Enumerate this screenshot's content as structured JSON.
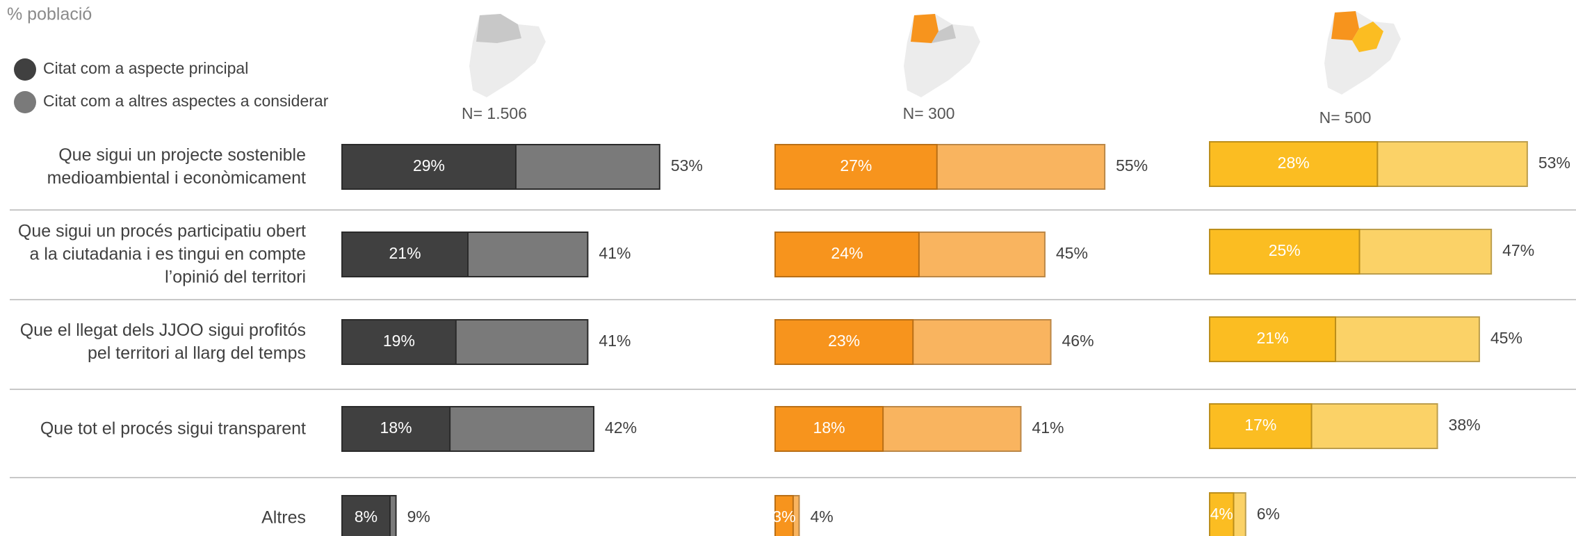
{
  "chart_data": {
    "type": "bar",
    "title": "% població",
    "legend": [
      {
        "name": "Citat com a aspecte principal",
        "color": "#404040"
      },
      {
        "name": "Citat com a altres aspectes a considerar",
        "color": "#7a7a7a"
      }
    ],
    "categories": [
      "Que sigui un projecte sostenible medioambiental i econòmicament",
      "Que sigui un procés participatiu obert a la ciutadania i es tingui en compte l’opinió del territori",
      "Que el llegat dels JJOO sigui profitós pel territori al llarg del temps",
      "Que tot el procés sigui transparent",
      "Altres"
    ],
    "xlim": [
      0,
      70
    ],
    "panels": [
      {
        "subtitle": "N= 1.506",
        "series": [
          {
            "name": "Citat com a aspecte principal",
            "color": "#404040",
            "values": [
              29,
              21,
              19,
              18,
              8
            ],
            "value_labels": [
              "29%",
              "21%",
              "19%",
              "18%",
              "8%"
            ]
          },
          {
            "name": "Citat com a altres aspectes a considerar",
            "color": "#7a7a7a",
            "values": [
              53,
              41,
              41,
              42,
              9
            ],
            "value_labels": [
              "53%",
              "41%",
              "41%",
              "42%",
              "9%"
            ]
          }
        ]
      },
      {
        "subtitle": "N= 300",
        "series": [
          {
            "name": "Citat com a aspecte principal",
            "color": "#f7941d",
            "values": [
              27,
              24,
              23,
              18,
              3
            ],
            "value_labels": [
              "27%",
              "24%",
              "23%",
              "18%",
              "3%"
            ]
          },
          {
            "name": "Citat com a altres aspectes a considerar",
            "color": "#f9b45f",
            "values": [
              55,
              45,
              46,
              41,
              4
            ],
            "value_labels": [
              "55%",
              "45%",
              "46%",
              "41%",
              "4%"
            ]
          }
        ]
      },
      {
        "subtitle": "N= 500",
        "series": [
          {
            "name": "Citat com a aspecte principal",
            "color": "#fbbd22",
            "values": [
              28,
              25,
              21,
              17,
              4
            ],
            "value_labels": [
              "28%",
              "25%",
              "21%",
              "17%",
              "4%"
            ]
          },
          {
            "name": "Citat com a altres aspectes a considerar",
            "color": "#fbd267",
            "values": [
              53,
              47,
              45,
              38,
              6
            ],
            "value_labels": [
              "53%",
              "47%",
              "45%",
              "38%",
              "6%"
            ]
          }
        ]
      }
    ]
  }
}
